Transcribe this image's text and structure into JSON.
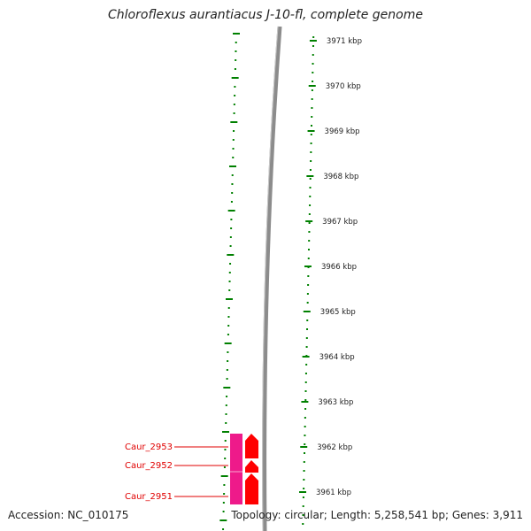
{
  "title": "Chloroflexus aurantiacus J-10-fl, complete genome",
  "footer": {
    "accession": "Accession: NC_010175",
    "topology": "Topology: circular; Length: 5,258,541 bp; Genes: 3,911"
  },
  "scale": {
    "unit": "kbp",
    "ticks": [
      "3971 kbp",
      "3970 kbp",
      "3969 kbp",
      "3968 kbp",
      "3967 kbp",
      "3966 kbp",
      "3965 kbp",
      "3964 kbp",
      "3963 kbp",
      "3962 kbp",
      "3961 kbp"
    ]
  },
  "genes": [
    {
      "label": "Caur_2953",
      "strand": "reverse"
    },
    {
      "label": "Caur_2952",
      "strand": "reverse"
    },
    {
      "label": "Caur_2951",
      "strand": "reverse"
    }
  ],
  "colors": {
    "gene_label": "#e00000",
    "cds_forward": "#ff0000",
    "cds_reverse": "#ee1a8a",
    "backbone": "#888888",
    "gc_track": "#008000"
  }
}
